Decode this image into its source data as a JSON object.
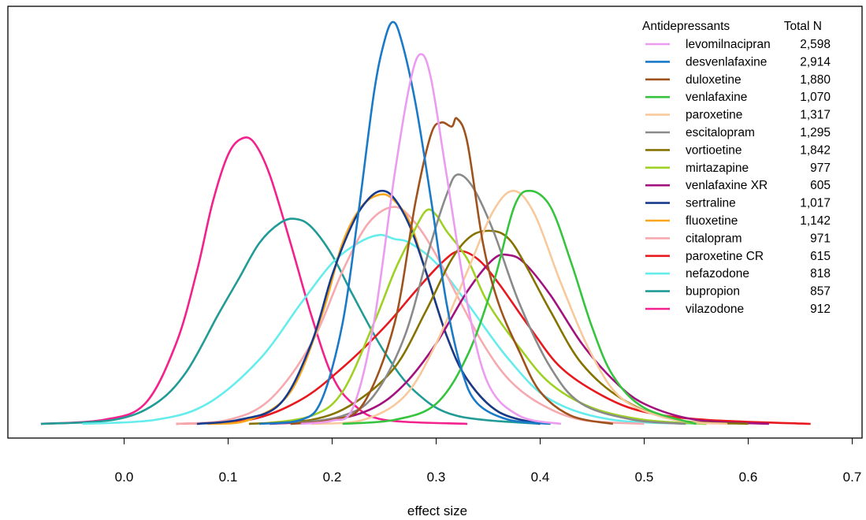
{
  "chart_data": {
    "type": "line",
    "title": "",
    "xlabel": "effect size",
    "ylabel": "",
    "xlim": [
      -0.115,
      0.71
    ],
    "ylim": [
      0,
      1.0
    ],
    "x_ticks": [
      "0.0",
      "0.1",
      "0.2",
      "0.3",
      "0.4",
      "0.5",
      "0.6",
      "0.7"
    ],
    "x_tick_values": [
      0.0,
      0.1,
      0.2,
      0.3,
      0.4,
      0.5,
      0.6,
      0.7
    ],
    "y_axis_shown": false,
    "grid": false,
    "legend": {
      "position": "top-right",
      "title": "Antidepressants",
      "count_title": "Total N"
    },
    "series": [
      {
        "name": "levomilnacipran",
        "n": "2,598",
        "color": "#ec9cf0",
        "points": [
          [
            0.17,
            0
          ],
          [
            0.2,
            0.008
          ],
          [
            0.22,
            0.04
          ],
          [
            0.24,
            0.25
          ],
          [
            0.26,
            0.62
          ],
          [
            0.275,
            0.85
          ],
          [
            0.285,
            0.92
          ],
          [
            0.295,
            0.86
          ],
          [
            0.31,
            0.62
          ],
          [
            0.33,
            0.3
          ],
          [
            0.35,
            0.1
          ],
          [
            0.38,
            0.02
          ],
          [
            0.42,
            0
          ]
        ]
      },
      {
        "name": "desvenlafaxine",
        "n": "2,914",
        "color": "#1a7ac8",
        "points": [
          [
            0.13,
            0
          ],
          [
            0.17,
            0.01
          ],
          [
            0.19,
            0.06
          ],
          [
            0.21,
            0.25
          ],
          [
            0.225,
            0.52
          ],
          [
            0.24,
            0.82
          ],
          [
            0.25,
            0.95
          ],
          [
            0.258,
            1.0
          ],
          [
            0.266,
            0.96
          ],
          [
            0.28,
            0.8
          ],
          [
            0.295,
            0.56
          ],
          [
            0.31,
            0.3
          ],
          [
            0.325,
            0.13
          ],
          [
            0.34,
            0.05
          ],
          [
            0.37,
            0.01
          ],
          [
            0.41,
            0
          ]
        ]
      },
      {
        "name": "duloxetine",
        "n": "1,880",
        "color": "#a0521c",
        "points": [
          [
            0.16,
            0
          ],
          [
            0.2,
            0.01
          ],
          [
            0.23,
            0.05
          ],
          [
            0.26,
            0.25
          ],
          [
            0.28,
            0.55
          ],
          [
            0.295,
            0.72
          ],
          [
            0.305,
            0.75
          ],
          [
            0.315,
            0.74
          ],
          [
            0.32,
            0.76
          ],
          [
            0.33,
            0.7
          ],
          [
            0.345,
            0.45
          ],
          [
            0.36,
            0.3
          ],
          [
            0.38,
            0.18
          ],
          [
            0.4,
            0.08
          ],
          [
            0.43,
            0.02
          ],
          [
            0.47,
            0
          ]
        ]
      },
      {
        "name": "venlafaxine",
        "n": "1,070",
        "color": "#36c43e",
        "points": [
          [
            0.21,
            0
          ],
          [
            0.26,
            0.01
          ],
          [
            0.3,
            0.05
          ],
          [
            0.33,
            0.17
          ],
          [
            0.355,
            0.35
          ],
          [
            0.375,
            0.54
          ],
          [
            0.39,
            0.58
          ],
          [
            0.41,
            0.54
          ],
          [
            0.43,
            0.4
          ],
          [
            0.45,
            0.24
          ],
          [
            0.47,
            0.12
          ],
          [
            0.5,
            0.04
          ],
          [
            0.55,
            0
          ]
        ]
      },
      {
        "name": "paroxetine",
        "n": "1,317",
        "color": "#f8c99c",
        "points": [
          [
            0.18,
            0
          ],
          [
            0.23,
            0.01
          ],
          [
            0.27,
            0.07
          ],
          [
            0.3,
            0.2
          ],
          [
            0.33,
            0.38
          ],
          [
            0.355,
            0.53
          ],
          [
            0.375,
            0.58
          ],
          [
            0.395,
            0.52
          ],
          [
            0.42,
            0.35
          ],
          [
            0.45,
            0.17
          ],
          [
            0.48,
            0.06
          ],
          [
            0.53,
            0.01
          ],
          [
            0.58,
            0
          ]
        ]
      },
      {
        "name": "escitalopram",
        "n": "1,295",
        "color": "#8a8a8a",
        "points": [
          [
            0.16,
            0
          ],
          [
            0.21,
            0.02
          ],
          [
            0.24,
            0.07
          ],
          [
            0.27,
            0.22
          ],
          [
            0.295,
            0.45
          ],
          [
            0.31,
            0.57
          ],
          [
            0.32,
            0.62
          ],
          [
            0.335,
            0.59
          ],
          [
            0.355,
            0.48
          ],
          [
            0.38,
            0.3
          ],
          [
            0.41,
            0.14
          ],
          [
            0.44,
            0.05
          ],
          [
            0.49,
            0.01
          ],
          [
            0.54,
            0
          ]
        ]
      },
      {
        "name": "vortioetine",
        "n": "1,842",
        "color": "#857200",
        "points": [
          [
            0.12,
            0
          ],
          [
            0.18,
            0.01
          ],
          [
            0.22,
            0.05
          ],
          [
            0.26,
            0.14
          ],
          [
            0.29,
            0.28
          ],
          [
            0.315,
            0.41
          ],
          [
            0.335,
            0.47
          ],
          [
            0.355,
            0.48
          ],
          [
            0.37,
            0.46
          ],
          [
            0.385,
            0.4
          ],
          [
            0.41,
            0.28
          ],
          [
            0.44,
            0.15
          ],
          [
            0.48,
            0.06
          ],
          [
            0.53,
            0.01
          ],
          [
            0.6,
            0
          ]
        ]
      },
      {
        "name": "mirtazapine",
        "n": "977",
        "color": "#9ed124",
        "points": [
          [
            0.13,
            0
          ],
          [
            0.18,
            0.02
          ],
          [
            0.21,
            0.08
          ],
          [
            0.24,
            0.25
          ],
          [
            0.26,
            0.38
          ],
          [
            0.275,
            0.46
          ],
          [
            0.29,
            0.53
          ],
          [
            0.3,
            0.52
          ],
          [
            0.31,
            0.48
          ],
          [
            0.33,
            0.41
          ],
          [
            0.35,
            0.3
          ],
          [
            0.38,
            0.19
          ],
          [
            0.41,
            0.1
          ],
          [
            0.45,
            0.04
          ],
          [
            0.5,
            0.01
          ],
          [
            0.56,
            0
          ]
        ]
      },
      {
        "name": "venlafaxine XR",
        "n": "605",
        "color": "#a3117e",
        "points": [
          [
            0.14,
            0
          ],
          [
            0.2,
            0.01
          ],
          [
            0.24,
            0.04
          ],
          [
            0.27,
            0.1
          ],
          [
            0.3,
            0.2
          ],
          [
            0.33,
            0.33
          ],
          [
            0.355,
            0.41
          ],
          [
            0.37,
            0.42
          ],
          [
            0.385,
            0.4
          ],
          [
            0.41,
            0.32
          ],
          [
            0.44,
            0.2
          ],
          [
            0.47,
            0.11
          ],
          [
            0.5,
            0.05
          ],
          [
            0.55,
            0.01
          ],
          [
            0.62,
            0
          ]
        ]
      },
      {
        "name": "sertraline",
        "n": "1,017",
        "color": "#173a8c",
        "points": [
          [
            0.07,
            0
          ],
          [
            0.11,
            0.01
          ],
          [
            0.15,
            0.05
          ],
          [
            0.18,
            0.2
          ],
          [
            0.2,
            0.37
          ],
          [
            0.22,
            0.5
          ],
          [
            0.235,
            0.56
          ],
          [
            0.248,
            0.58
          ],
          [
            0.26,
            0.56
          ],
          [
            0.275,
            0.49
          ],
          [
            0.29,
            0.38
          ],
          [
            0.31,
            0.22
          ],
          [
            0.33,
            0.11
          ],
          [
            0.36,
            0.03
          ],
          [
            0.4,
            0
          ]
        ]
      },
      {
        "name": "fluoxetine",
        "n": "1,142",
        "color": "#f9a51a",
        "points": [
          [
            0.08,
            0
          ],
          [
            0.12,
            0.01
          ],
          [
            0.16,
            0.08
          ],
          [
            0.19,
            0.27
          ],
          [
            0.21,
            0.45
          ],
          [
            0.228,
            0.54
          ],
          [
            0.245,
            0.57
          ],
          [
            0.258,
            0.56
          ],
          [
            0.275,
            0.5
          ],
          [
            0.29,
            0.38
          ],
          [
            0.31,
            0.22
          ],
          [
            0.33,
            0.11
          ],
          [
            0.36,
            0.03
          ],
          [
            0.4,
            0
          ]
        ]
      },
      {
        "name": "citalopram",
        "n": "971",
        "color": "#f6a9ae",
        "points": [
          [
            0.05,
            0
          ],
          [
            0.1,
            0.01
          ],
          [
            0.14,
            0.06
          ],
          [
            0.18,
            0.2
          ],
          [
            0.21,
            0.38
          ],
          [
            0.235,
            0.5
          ],
          [
            0.26,
            0.54
          ],
          [
            0.28,
            0.5
          ],
          [
            0.3,
            0.42
          ],
          [
            0.32,
            0.32
          ],
          [
            0.345,
            0.2
          ],
          [
            0.37,
            0.11
          ],
          [
            0.4,
            0.05
          ],
          [
            0.44,
            0.01
          ],
          [
            0.5,
            0
          ]
        ]
      },
      {
        "name": "paroxetine CR",
        "n": "615",
        "color": "#e8191e",
        "points": [
          [
            0.05,
            0
          ],
          [
            0.12,
            0.01
          ],
          [
            0.17,
            0.06
          ],
          [
            0.21,
            0.14
          ],
          [
            0.25,
            0.24
          ],
          [
            0.28,
            0.33
          ],
          [
            0.305,
            0.4
          ],
          [
            0.322,
            0.43
          ],
          [
            0.34,
            0.41
          ],
          [
            0.36,
            0.35
          ],
          [
            0.39,
            0.24
          ],
          [
            0.42,
            0.14
          ],
          [
            0.46,
            0.07
          ],
          [
            0.5,
            0.03
          ],
          [
            0.56,
            0.01
          ],
          [
            0.66,
            0
          ]
        ]
      },
      {
        "name": "nefazodone",
        "n": "818",
        "color": "#65ecec",
        "points": [
          [
            -0.04,
            0
          ],
          [
            0.03,
            0.01
          ],
          [
            0.08,
            0.05
          ],
          [
            0.13,
            0.16
          ],
          [
            0.17,
            0.3
          ],
          [
            0.2,
            0.4
          ],
          [
            0.225,
            0.45
          ],
          [
            0.245,
            0.47
          ],
          [
            0.26,
            0.46
          ],
          [
            0.275,
            0.45
          ],
          [
            0.3,
            0.4
          ],
          [
            0.33,
            0.3
          ],
          [
            0.37,
            0.16
          ],
          [
            0.41,
            0.06
          ],
          [
            0.47,
            0.01
          ],
          [
            0.56,
            0
          ]
        ]
      },
      {
        "name": "bupropion",
        "n": "857",
        "color": "#219b96",
        "points": [
          [
            -0.08,
            0
          ],
          [
            -0.01,
            0.01
          ],
          [
            0.03,
            0.05
          ],
          [
            0.06,
            0.13
          ],
          [
            0.09,
            0.27
          ],
          [
            0.11,
            0.36
          ],
          [
            0.13,
            0.45
          ],
          [
            0.15,
            0.5
          ],
          [
            0.165,
            0.51
          ],
          [
            0.18,
            0.49
          ],
          [
            0.2,
            0.42
          ],
          [
            0.22,
            0.32
          ],
          [
            0.25,
            0.18
          ],
          [
            0.28,
            0.08
          ],
          [
            0.32,
            0.02
          ],
          [
            0.4,
            0
          ]
        ]
      },
      {
        "name": "vilazodone",
        "n": "912",
        "color": "#f2218d",
        "points": [
          [
            -0.08,
            0
          ],
          [
            -0.02,
            0.01
          ],
          [
            0.02,
            0.05
          ],
          [
            0.05,
            0.2
          ],
          [
            0.07,
            0.38
          ],
          [
            0.085,
            0.55
          ],
          [
            0.1,
            0.67
          ],
          [
            0.113,
            0.71
          ],
          [
            0.125,
            0.7
          ],
          [
            0.14,
            0.62
          ],
          [
            0.16,
            0.45
          ],
          [
            0.18,
            0.27
          ],
          [
            0.2,
            0.12
          ],
          [
            0.22,
            0.05
          ],
          [
            0.25,
            0.01
          ],
          [
            0.33,
            0
          ]
        ]
      }
    ]
  }
}
